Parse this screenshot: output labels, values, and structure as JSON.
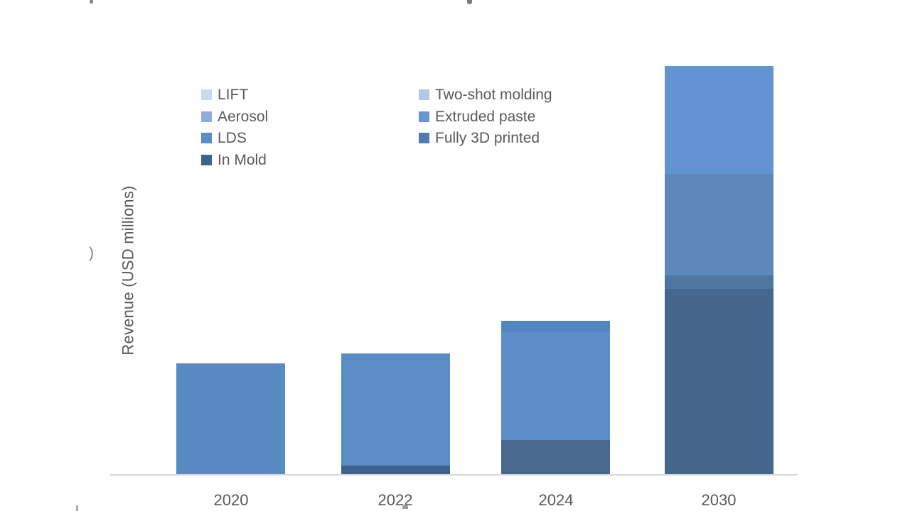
{
  "chart_data": {
    "type": "bar",
    "stacked": true,
    "title": "",
    "ylabel": "Revenue (USD millions)",
    "xlabel": "",
    "categories": [
      "2020",
      "2022",
      "2024",
      "2030"
    ],
    "ylim": [
      0,
      600
    ],
    "grid": false,
    "legend_position": "top-inside-two-columns",
    "value_units": "relative (no numeric axis ticks visible; values estimated in pixel-proportional units)",
    "series": [
      {
        "name": "LIFT",
        "values": [
          0,
          0,
          0,
          0
        ]
      },
      {
        "name": "Two-shot molding",
        "values": [
          0,
          0,
          0,
          0
        ]
      },
      {
        "name": "Aerosol",
        "values": [
          0,
          0,
          0,
          0
        ]
      },
      {
        "name": "Extruded paste",
        "values": [
          156,
          158,
          152,
          152
        ]
      },
      {
        "name": "LDS",
        "values": [
          0,
          0,
          16,
          143
        ]
      },
      {
        "name": "Fully 3D printed",
        "values": [
          0,
          0,
          0,
          19
        ]
      },
      {
        "name": "In Mold",
        "values": [
          0,
          12,
          48,
          261
        ]
      }
    ],
    "bars": [
      {
        "category": "2020",
        "segments": [
          {
            "series": "Extruded paste",
            "value": 156,
            "color": "#5a8ac4"
          }
        ]
      },
      {
        "category": "2022",
        "segments": [
          {
            "series": "In Mold",
            "value": 12,
            "color": "#3e628e"
          },
          {
            "series": "Extruded paste",
            "value": 158,
            "color": "#5a8cc5"
          }
        ]
      },
      {
        "category": "2024",
        "segments": [
          {
            "series": "In Mold",
            "value": 48,
            "color": "#47688f"
          },
          {
            "series": "Extruded paste",
            "value": 152,
            "color": "#5d8ec9"
          },
          {
            "series": "LDS",
            "value": 16,
            "color": "#5286c2"
          }
        ]
      },
      {
        "category": "2030",
        "segments": [
          {
            "series": "In Mold",
            "value": 261,
            "color": "#45678e"
          },
          {
            "series": "Fully 3D printed",
            "value": 19,
            "color": "#4f76a0"
          },
          {
            "series": "LDS",
            "value": 143,
            "color": "#5e88ba"
          },
          {
            "series": "Extruded paste",
            "value": 152,
            "color": "#6294d3"
          }
        ]
      }
    ]
  },
  "legend": {
    "left_column": [
      {
        "label": "LIFT",
        "color": "#ccd9ed"
      },
      {
        "label": "Aerosol",
        "color": "#8fadda"
      },
      {
        "label": "LDS",
        "color": "#5b8ec2"
      },
      {
        "label": "In Mold",
        "color": "#3a648f"
      }
    ],
    "right_column": [
      {
        "label": "Two-shot molding",
        "color": "#b3c7e6"
      },
      {
        "label": "Extruded paste",
        "color": "#6697d3"
      },
      {
        "label": "Fully 3D printed",
        "color": "#4d7cb2"
      }
    ]
  },
  "artifacts": {
    "left_axis_fragment": ")"
  },
  "colors": {
    "axis_line": "#d6d6d6",
    "text": "#595959",
    "background": "#ffffff"
  }
}
